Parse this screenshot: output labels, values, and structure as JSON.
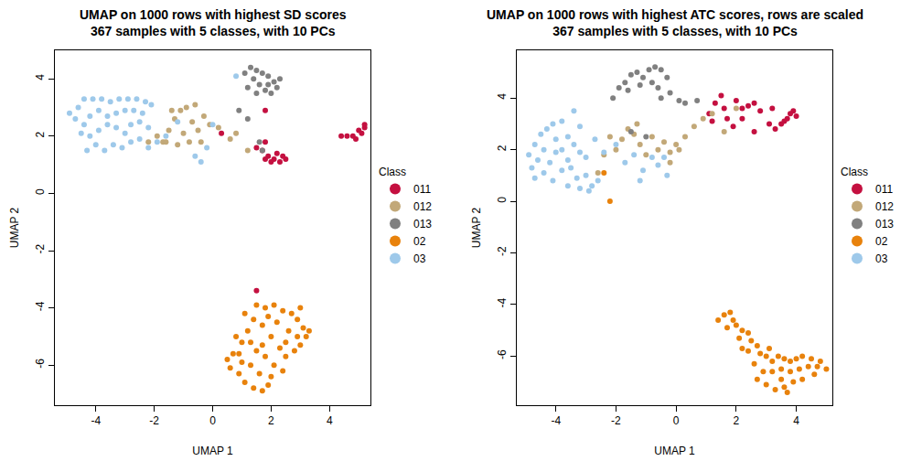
{
  "chart_data": [
    {
      "type": "scatter",
      "title": "UMAP on 1000 rows with highest SD scores\n367 samples with 5 classes, with 10 PCs",
      "x_label": "UMAP 1",
      "y_label": "UMAP 2",
      "legend_title": "Class",
      "marker": "circle",
      "xlim": [
        -5.4,
        5.4
      ],
      "ylim": [
        -7.4,
        5.0
      ],
      "xticks": [
        -4,
        -2,
        0,
        2,
        4
      ],
      "yticks": [
        -6,
        -4,
        -2,
        0,
        2,
        4
      ],
      "grid": false,
      "series": [
        {
          "name": "011",
          "color": "#C41040",
          "x": [
            1.7,
            1.9,
            2.1,
            2.3,
            2.5,
            2.2,
            2.0,
            1.8,
            2.4,
            4.4,
            4.6,
            4.8,
            5.0,
            5.2,
            5.1,
            4.9,
            5.2,
            0.3,
            1.8,
            1.5,
            1.5,
            1.8
          ],
          "y": [
            1.5,
            1.3,
            1.2,
            1.1,
            1.2,
            1.4,
            1.1,
            1.2,
            1.3,
            2.0,
            2.0,
            2.0,
            2.2,
            2.3,
            2.1,
            1.9,
            2.4,
            2.1,
            2.9,
            1.6,
            -3.4,
            1.8
          ]
        },
        {
          "name": "012",
          "color": "#C2A878",
          "x": [
            -1.9,
            -1.7,
            -1.5,
            -1.3,
            -1.1,
            -0.9,
            -0.7,
            -0.5,
            -0.3,
            -0.1,
            -1.6,
            -1.0,
            -0.8,
            -0.4,
            0.2,
            0.6,
            1.2,
            -1.4,
            -0.6,
            -2.2,
            0.8,
            -1.2
          ],
          "y": [
            2.0,
            1.8,
            2.2,
            2.6,
            2.9,
            3.0,
            2.5,
            2.2,
            2.7,
            2.4,
            1.8,
            2.1,
            1.8,
            1.8,
            2.3,
            1.9,
            1.5,
            2.9,
            3.1,
            1.8,
            2.1,
            1.7
          ]
        },
        {
          "name": "013",
          "color": "#808080",
          "x": [
            1.3,
            1.5,
            1.7,
            1.9,
            2.1,
            1.4,
            1.6,
            1.8,
            2.0,
            2.2,
            1.2,
            1.5,
            1.9,
            1.1,
            2.3,
            0.9,
            1.2,
            1.6,
            1.7
          ],
          "y": [
            4.4,
            4.3,
            4.2,
            4.1,
            3.9,
            4.0,
            3.8,
            3.6,
            3.5,
            3.7,
            3.7,
            3.5,
            3.8,
            4.2,
            4.0,
            2.9,
            2.6,
            1.8,
            1.5
          ]
        },
        {
          "name": "02",
          "color": "#E8820C",
          "x": [
            1.5,
            1.8,
            2.1,
            2.4,
            2.7,
            2.9,
            3.1,
            3.2,
            3.0,
            2.8,
            2.5,
            2.3,
            2.0,
            1.7,
            1.4,
            1.2,
            1.0,
            0.7,
            0.5,
            0.6,
            0.9,
            1.1,
            1.4,
            1.7,
            1.9,
            1.6,
            1.3,
            1.0,
            1.5,
            1.8,
            2.1,
            2.4,
            2.2,
            2.6,
            2.9,
            3.3,
            1.9,
            1.3,
            0.8,
            2.0,
            1.7,
            2.5,
            3.0,
            1.1,
            0.9
          ],
          "y": [
            -3.9,
            -4.0,
            -3.9,
            -4.1,
            -4.2,
            -4.4,
            -4.7,
            -5.0,
            -5.3,
            -5.5,
            -5.7,
            -5.4,
            -5.0,
            -4.6,
            -4.4,
            -4.8,
            -5.2,
            -5.6,
            -5.8,
            -6.1,
            -6.3,
            -6.6,
            -6.8,
            -6.9,
            -6.7,
            -6.3,
            -6.0,
            -5.9,
            -5.5,
            -5.7,
            -6.0,
            -6.2,
            -4.5,
            -4.8,
            -5.0,
            -4.8,
            -4.3,
            -5.2,
            -5.0,
            -6.4,
            -5.3,
            -5.2,
            -4.0,
            -4.2,
            -5.6
          ]
        },
        {
          "name": "03",
          "color": "#9EC9EA",
          "x": [
            -4.9,
            -4.6,
            -4.4,
            -4.1,
            -3.8,
            -3.5,
            -3.2,
            -2.9,
            -2.6,
            -2.3,
            -2.1,
            -4.7,
            -4.4,
            -4.2,
            -3.9,
            -3.6,
            -3.3,
            -3.0,
            -2.7,
            -2.4,
            -4.5,
            -4.2,
            -3.9,
            -3.6,
            -3.3,
            -3.0,
            -2.8,
            -2.5,
            -2.2,
            -4.0,
            -3.7,
            -3.4,
            -3.1,
            -2.8,
            -2.5,
            -2.2,
            -1.9,
            -1.6,
            -4.3,
            -0.6,
            -0.4,
            0.0,
            -0.2,
            0.8,
            -1.2
          ],
          "y": [
            2.8,
            3.0,
            3.3,
            3.3,
            3.3,
            3.2,
            3.3,
            3.3,
            3.3,
            3.2,
            3.1,
            2.6,
            2.4,
            2.7,
            2.9,
            2.7,
            2.8,
            2.9,
            2.9,
            2.8,
            2.1,
            2.0,
            2.2,
            2.4,
            2.3,
            2.1,
            2.4,
            2.5,
            2.3,
            1.7,
            1.5,
            1.7,
            1.6,
            1.8,
            1.9,
            1.6,
            1.8,
            2.0,
            1.5,
            1.3,
            1.1,
            2.4,
            1.6,
            4.1,
            2.5
          ]
        }
      ]
    },
    {
      "type": "scatter",
      "title": "UMAP on 1000 rows with highest ATC scores, rows are scaled\n367 samples with 5 classes, with 10 PCs",
      "x_label": "UMAP 1",
      "y_label": "UMAP 2",
      "legend_title": "Class",
      "marker": "circle",
      "xlim": [
        -5.3,
        5.2
      ],
      "ylim": [
        -7.9,
        5.85
      ],
      "xticks": [
        -4,
        -2,
        0,
        2,
        4
      ],
      "yticks": [
        -6,
        -4,
        -2,
        0,
        2,
        4
      ],
      "grid": false,
      "series": [
        {
          "name": "011",
          "color": "#C41040",
          "x": [
            1.1,
            1.3,
            1.5,
            1.6,
            1.7,
            2.0,
            2.2,
            2.4,
            2.6,
            2.8,
            3.1,
            3.3,
            3.5,
            3.7,
            3.8,
            3.9,
            4.0,
            3.6,
            1.9,
            2.2,
            3.2,
            1.2,
            2.6
          ],
          "y": [
            3.4,
            3.8,
            4.1,
            3.6,
            3.2,
            3.9,
            3.6,
            3.7,
            3.8,
            3.5,
            3.0,
            2.8,
            3.0,
            3.2,
            3.4,
            3.5,
            3.3,
            3.1,
            2.9,
            3.2,
            3.6,
            3.1,
            2.7
          ]
        },
        {
          "name": "012",
          "color": "#C2A878",
          "x": [
            -2.6,
            -2.4,
            -2.2,
            -2.0,
            -1.8,
            -1.6,
            -1.4,
            -1.2,
            -1.0,
            -0.8,
            -0.6,
            -0.4,
            -0.2,
            0.0,
            0.1,
            0.3,
            0.6,
            0.9,
            1.2,
            1.6,
            2.0,
            -1.3,
            -0.2
          ],
          "y": [
            1.1,
            1.8,
            2.5,
            2.0,
            2.4,
            2.8,
            2.6,
            2.2,
            1.8,
            2.5,
            2.0,
            2.3,
            1.9,
            2.2,
            2.0,
            2.5,
            2.9,
            3.2,
            3.4,
            2.7,
            3.6,
            3.0,
            1.5
          ]
        },
        {
          "name": "013",
          "color": "#808080",
          "x": [
            -2.1,
            -1.9,
            -1.7,
            -1.5,
            -1.3,
            -1.1,
            -0.9,
            -0.7,
            -0.5,
            -0.3,
            -1.6,
            -1.2,
            -0.8,
            -0.6,
            -0.2,
            0.1,
            0.3,
            0.7,
            -1.5,
            -1.0,
            -0.5
          ],
          "y": [
            4.0,
            4.4,
            4.6,
            4.9,
            5.0,
            4.8,
            5.1,
            5.2,
            5.1,
            4.8,
            4.3,
            4.5,
            4.6,
            4.4,
            4.2,
            3.9,
            3.8,
            3.9,
            2.7,
            2.5,
            4.0
          ]
        },
        {
          "name": "02",
          "color": "#E8820C",
          "x": [
            1.4,
            1.6,
            1.8,
            1.9,
            1.7,
            2.0,
            2.2,
            2.4,
            2.1,
            2.5,
            2.7,
            2.4,
            2.8,
            3.0,
            3.2,
            3.4,
            3.6,
            3.8,
            4.0,
            4.2,
            4.5,
            4.8,
            5.0,
            4.7,
            4.4,
            4.1,
            3.8,
            3.5,
            3.2,
            2.9,
            2.7,
            3.0,
            3.3,
            3.6,
            3.9,
            4.2,
            3.5,
            2.6,
            4.6,
            3.1,
            2.2,
            3.7,
            -2.4,
            -2.2
          ],
          "y": [
            -4.6,
            -4.4,
            -4.3,
            -4.6,
            -4.9,
            -4.8,
            -5.0,
            -5.1,
            -5.3,
            -5.4,
            -5.6,
            -5.8,
            -5.9,
            -6.0,
            -6.2,
            -6.0,
            -6.1,
            -6.2,
            -6.1,
            -6.0,
            -6.1,
            -6.2,
            -6.5,
            -6.4,
            -6.4,
            -6.5,
            -6.6,
            -6.5,
            -6.6,
            -6.6,
            -6.9,
            -7.1,
            -7.3,
            -7.2,
            -7.0,
            -6.9,
            -6.9,
            -6.3,
            -6.7,
            -5.7,
            -5.7,
            -7.4,
            1.1,
            0.0
          ]
        },
        {
          "name": "03",
          "color": "#9EC9EA",
          "x": [
            -4.9,
            -4.7,
            -4.5,
            -4.3,
            -4.1,
            -3.8,
            -3.6,
            -3.4,
            -3.2,
            -4.8,
            -4.6,
            -4.4,
            -4.2,
            -4.0,
            -3.8,
            -3.6,
            -3.4,
            -3.2,
            -3.0,
            -4.7,
            -4.4,
            -4.1,
            -3.8,
            -3.5,
            -3.3,
            -3.0,
            -2.8,
            -2.6,
            -2.9,
            -3.2,
            -2.7,
            -2.4,
            -2.0,
            -1.7,
            -1.4,
            -1.1,
            -0.8,
            -0.6,
            -0.4,
            -0.3,
            -1.2,
            -4.0,
            -3.6
          ],
          "y": [
            1.8,
            2.2,
            2.6,
            2.8,
            3.0,
            3.1,
            2.5,
            3.5,
            2.9,
            1.3,
            1.6,
            2.0,
            1.5,
            1.9,
            2.0,
            1.6,
            2.2,
            1.9,
            1.7,
            0.9,
            1.1,
            0.8,
            1.2,
            1.3,
            0.9,
            1.0,
            0.6,
            0.8,
            0.4,
            0.5,
            2.4,
            1.9,
            2.2,
            1.5,
            1.8,
            1.2,
            1.7,
            1.4,
            1.7,
            1.0,
            0.8,
            2.4,
            0.6
          ]
        }
      ]
    }
  ]
}
